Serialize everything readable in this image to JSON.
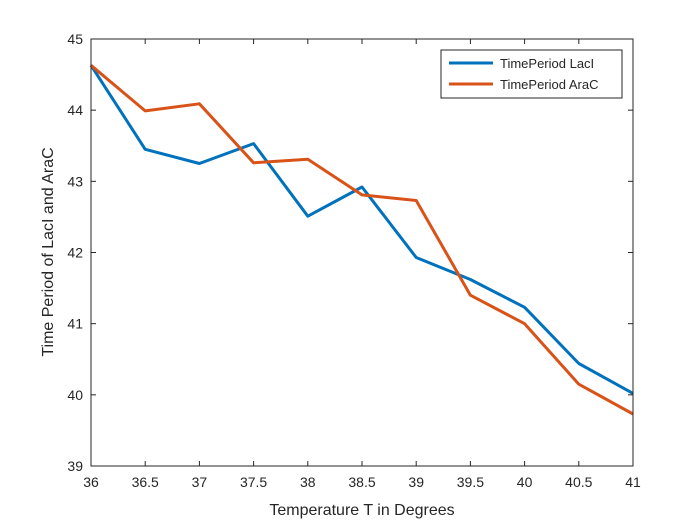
{
  "chart_data": {
    "type": "line",
    "title": "",
    "xlabel": "Temperature T in Degrees",
    "ylabel": "Time Period of LacI and AraC",
    "xlim": [
      36,
      41
    ],
    "ylim": [
      39,
      45
    ],
    "xticks": [
      "36",
      "36.5",
      "37",
      "37.5",
      "38",
      "38.5",
      "39",
      "39.5",
      "40",
      "40.5",
      "41"
    ],
    "yticks": [
      "39",
      "40",
      "41",
      "42",
      "43",
      "44",
      "45"
    ],
    "grid": false,
    "legend_position": "top-right",
    "x": [
      36,
      36.5,
      37,
      37.5,
      38,
      38.5,
      39,
      39.5,
      40,
      40.5,
      41
    ],
    "series": [
      {
        "name": "TimePeriod LacI",
        "color": "#0072BD",
        "values": [
          44.63,
          43.45,
          43.25,
          43.53,
          42.51,
          42.92,
          41.93,
          41.62,
          41.23,
          40.44,
          40.02
        ]
      },
      {
        "name": "TimePeriod AraC",
        "color": "#D95319",
        "values": [
          44.63,
          43.99,
          44.09,
          43.26,
          43.31,
          42.81,
          42.73,
          41.4,
          41.0,
          40.15,
          39.73
        ]
      }
    ]
  }
}
